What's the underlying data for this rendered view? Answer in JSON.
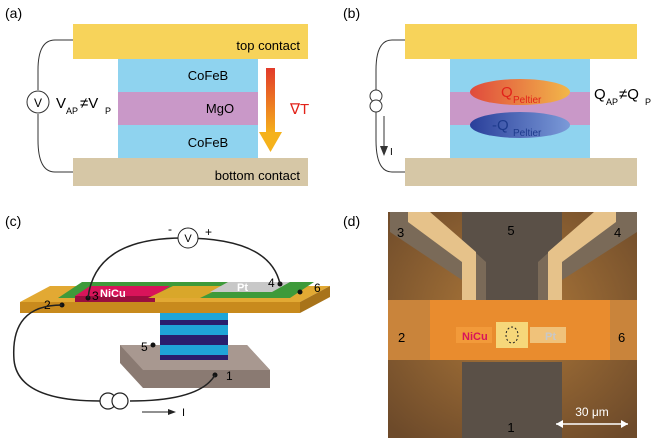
{
  "panel_a": {
    "label": "(a)",
    "top_contact": "top contact",
    "bottom_contact": "bottom contact",
    "layer_top": "CoFeB",
    "layer_mid": "MgO",
    "layer_bottom": "CoFeB",
    "voltmeter": "V",
    "v_ap": "V",
    "v_ap_sub": "AP",
    "neq": "≠V",
    "v_p_sub": "P",
    "grad_t": "∇T"
  },
  "panel_b": {
    "label": "(b)",
    "q_peltier": "Q",
    "q_peltier_sub": "Peltier",
    "neg_q_peltier": "-Q",
    "neg_q_peltier_sub": "Peltier",
    "current": "I",
    "q_ap": "Q",
    "q_ap_sub": "AP",
    "q_neq": "≠Q",
    "q_p_sub": "P"
  },
  "panel_c": {
    "label": "(c)",
    "voltmeter": "V",
    "minus": "-",
    "plus": "+",
    "nicu": "NiCu",
    "pt": "Pt",
    "contacts": [
      "1",
      "2",
      "3",
      "4",
      "5",
      "6"
    ],
    "current": "I"
  },
  "panel_d": {
    "label": "(d)",
    "contacts": [
      "1",
      "2",
      "3",
      "4",
      "5",
      "6"
    ],
    "nicu": "NiCu",
    "pt": "Pt",
    "scale": "30 μm"
  },
  "colors": {
    "contact_gold": "#f7d35a",
    "contact_tan": "#d6c7a6",
    "cofeb_blue": "#8fd3ef",
    "mgo_violet": "#c998c8",
    "nicu_red": "#d8145a",
    "pt_gray": "#c8c8c8",
    "pcb_green": "#3e9a3a",
    "pcb_gold": "#e2a933",
    "peltier_red": "#e0503a",
    "peltier_blue": "#2e55a6"
  }
}
